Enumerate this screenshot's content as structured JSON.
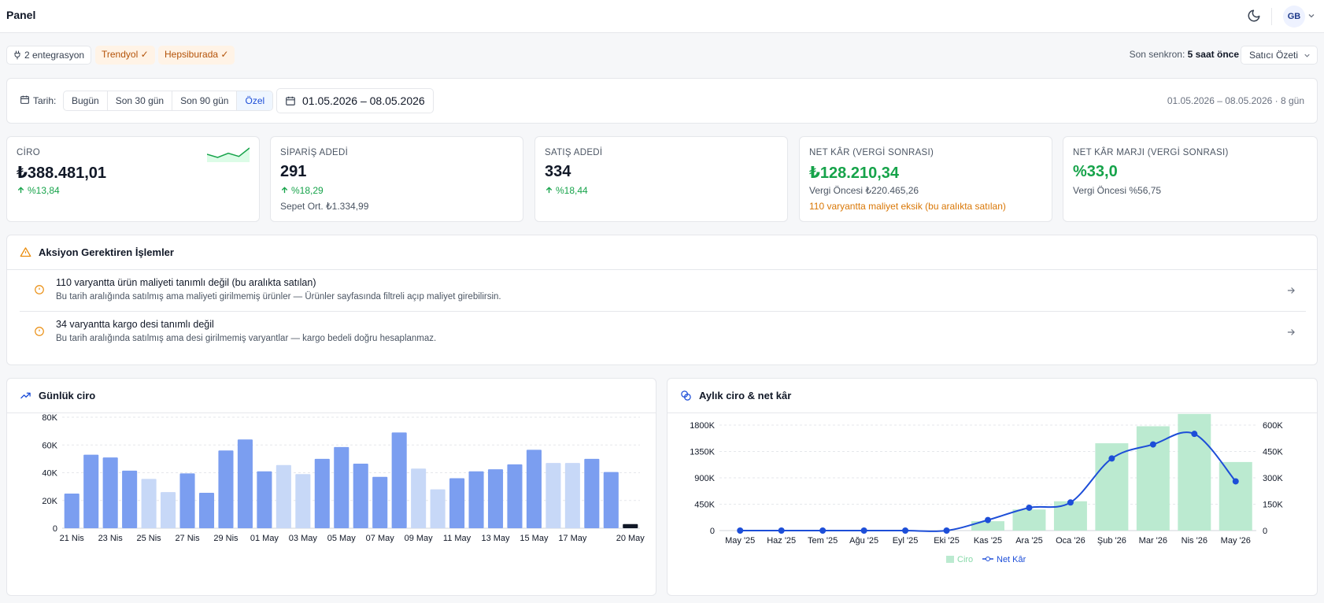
{
  "header": {
    "title": "Panel",
    "avatar": "GB"
  },
  "integrations": {
    "count_label": "2 entegrasyon",
    "items": [
      {
        "label": "Trendyol ✓"
      },
      {
        "label": "Hepsiburada ✓"
      }
    ],
    "sync_label": "Son senkron:",
    "sync_value": "5 saat önce",
    "summary_select": "Satıcı Özeti"
  },
  "datebar": {
    "label": "Tarih:",
    "ranges": [
      "Bugün",
      "Son 30 gün",
      "Son 90 gün",
      "Özel"
    ],
    "active": "Özel",
    "range_value": "01.05.2026 – 08.05.2026",
    "summary": "01.05.2026 – 08.05.2026 · 8 gün"
  },
  "kpis": [
    {
      "title": "CİRO",
      "value": "₺388.481,01",
      "delta": "%13,84",
      "sparkline": [
        6,
        3,
        7,
        4,
        12
      ]
    },
    {
      "title": "SİPARİŞ ADEDİ",
      "value": "291",
      "delta": "%18,29",
      "sub": "Sepet Ort. ₺1.334,99"
    },
    {
      "title": "SATIŞ ADEDİ",
      "value": "334",
      "delta": "%18,44"
    },
    {
      "title": "NET KÂR (VERGİ SONRASI)",
      "value": "₺128.210,34",
      "sub": "Vergi Öncesi ₺220.465,26",
      "warning": "110 varyantta maliyet eksik (bu aralıkta satılan)"
    },
    {
      "title": "NET KÂR MARJI (VERGİ SONRASI)",
      "value": "%33,0",
      "sub": "Vergi Öncesi %56,75"
    }
  ],
  "actions": {
    "title": "Aksiyon Gerektiren İşlemler",
    "items": [
      {
        "title": "110 varyantta ürün maliyeti tanımlı değil (bu aralıkta satılan)",
        "desc": "Bu tarih aralığında satılmış ama maliyeti girilmemiş ürünler — Ürünler sayfasında filtreli açıp maliyet girebilirsin."
      },
      {
        "title": "34 varyantta kargo desi tanımlı değil",
        "desc": "Bu tarih aralığında satılmış ama desi girilmemiş varyantlar — kargo bedeli doğru hesaplanmaz."
      }
    ]
  },
  "chart_data": [
    {
      "type": "bar",
      "title": "Günlük ciro",
      "categories": [
        "21 Nis",
        "22 Nis",
        "23 Nis",
        "24 Nis",
        "25 Nis",
        "26 Nis",
        "27 Nis",
        "28 Nis",
        "29 Nis",
        "30 Nis",
        "01 May",
        "02 May",
        "03 May",
        "04 May",
        "05 May",
        "06 May",
        "07 May",
        "08 May",
        "09 May",
        "10 May",
        "11 May",
        "12 May",
        "13 May",
        "14 May",
        "15 May",
        "16 May",
        "17 May",
        "18 May",
        "19 May",
        "20 May"
      ],
      "tick_labels": [
        "21 Nis",
        "23 Nis",
        "25 Nis",
        "27 Nis",
        "29 Nis",
        "01 May",
        "03 May",
        "05 May",
        "07 May",
        "09 May",
        "11 May",
        "13 May",
        "15 May",
        "17 May",
        "20 May"
      ],
      "values": [
        25000,
        53000,
        51000,
        41500,
        35500,
        26000,
        39500,
        25500,
        56000,
        64000,
        41000,
        45500,
        39000,
        50000,
        58500,
        46500,
        37000,
        69000,
        43000,
        28000,
        36000,
        41000,
        42500,
        46000,
        56500,
        47000,
        47000,
        50000,
        40500,
        3000
      ],
      "weekend": [
        false,
        false,
        false,
        false,
        true,
        true,
        false,
        false,
        false,
        false,
        false,
        true,
        true,
        false,
        false,
        false,
        false,
        false,
        true,
        true,
        false,
        false,
        false,
        false,
        false,
        true,
        true,
        false,
        false,
        false
      ],
      "today_index": 29,
      "yticks": [
        "0",
        "20K",
        "40K",
        "60K",
        "80K"
      ],
      "ylim": [
        0,
        80000
      ],
      "colors": {
        "bar": "#7b9ef0",
        "weekend": "#c7d8f7",
        "today": "#111827"
      }
    },
    {
      "type": "bar+line",
      "title": "Aylık ciro & net kâr",
      "categories": [
        "May '25",
        "Haz '25",
        "Tem '25",
        "Ağu '25",
        "Eyl '25",
        "Eki '25",
        "Kas '25",
        "Ara '25",
        "Oca '26",
        "Şub '26",
        "Mar '26",
        "Nis '26",
        "May '26"
      ],
      "series": [
        {
          "name": "Ciro",
          "type": "bar",
          "axis": "left",
          "values": [
            0,
            0,
            0,
            0,
            0,
            0,
            160000,
            360000,
            500000,
            1490000,
            1780000,
            1990000,
            1170000
          ],
          "color": "#bbead0"
        },
        {
          "name": "Net Kâr",
          "type": "line",
          "axis": "right",
          "values": [
            0,
            0,
            0,
            0,
            0,
            0,
            60000,
            130000,
            160000,
            410000,
            490000,
            550000,
            280000
          ],
          "color": "#1d4ed8"
        }
      ],
      "yticks_left": [
        "0",
        "450K",
        "900K",
        "1350K",
        "1800K"
      ],
      "ylim_left": [
        0,
        1800000
      ],
      "yticks_right": [
        "0",
        "150K",
        "300K",
        "450K",
        "600K"
      ],
      "ylim_right": [
        0,
        600000
      ],
      "legend_position": "bottom"
    }
  ]
}
